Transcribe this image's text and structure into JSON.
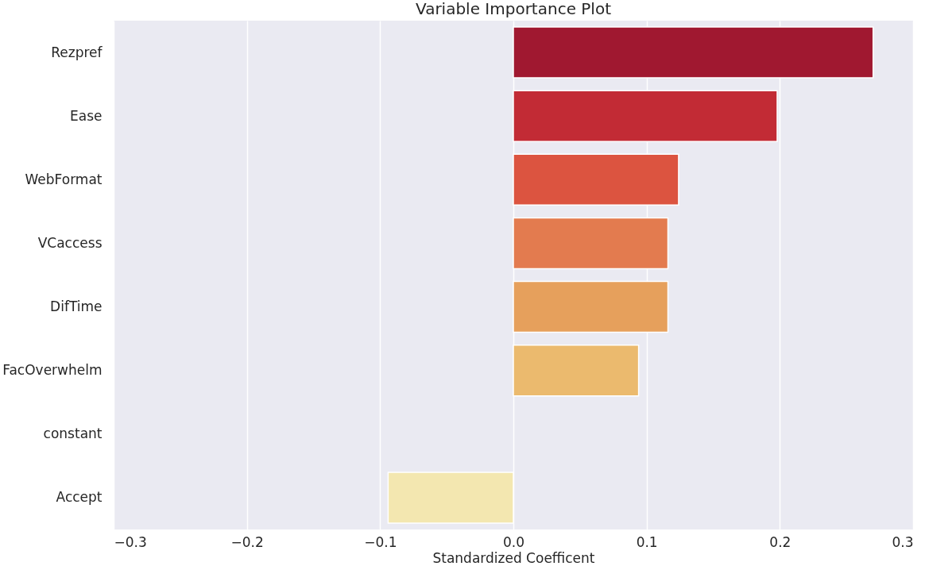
{
  "chart_data": {
    "type": "bar",
    "orientation": "horizontal",
    "title": "Variable Importance Plot",
    "xlabel": "Standardized Coefficent",
    "categories": [
      "Rezpref",
      "Ease",
      "WebFormat",
      "VCaccess",
      "DifTime",
      "FacOverwhelm",
      "constant",
      "Accept"
    ],
    "values": [
      0.27,
      0.198,
      0.124,
      0.116,
      0.116,
      0.094,
      0,
      -0.094
    ],
    "colors": [
      "#a01830",
      "#c22b35",
      "#dc5440",
      "#e37b4f",
      "#e6a05c",
      "#ebba6e",
      "#f0d48c",
      "#f3e7b0"
    ],
    "xlim": [
      -0.3,
      0.3
    ],
    "xticks": [
      -0.3,
      -0.2,
      -0.1,
      {
        "value": 0,
        "label": "0.0"
      },
      0.1,
      0.2,
      0.3
    ],
    "grid": "x"
  }
}
